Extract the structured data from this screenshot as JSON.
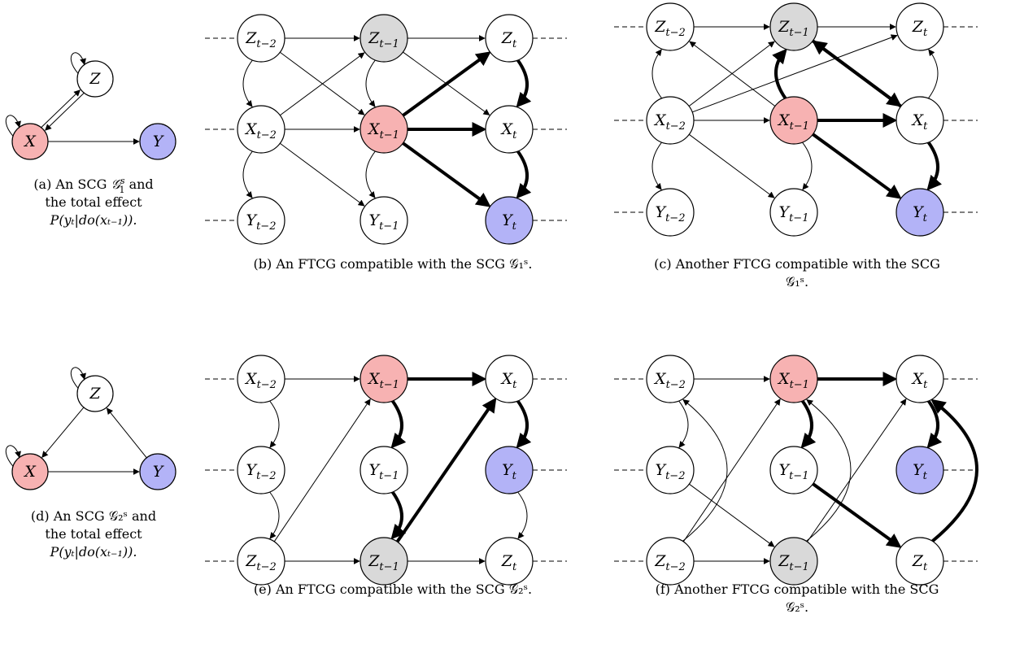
{
  "colors": {
    "red": "#f7b2b2",
    "blue": "#b3b3f7",
    "gray": "#d9d9d9",
    "white": "#ffffff"
  },
  "captions": {
    "a": {
      "l1": "(a) An SCG ",
      "g": "𝒢",
      "sup": "s",
      "sub": "1",
      "l1b": " and",
      "l2": "the total effect",
      "l3": "P(yₜ|do(xₜ₋₁))."
    },
    "b": "(b) An FTCG compatible with the SCG 𝒢₁ˢ.",
    "c": {
      "l1": "(c) Another FTCG compatible with the SCG",
      "l2": "𝒢₁ˢ."
    },
    "d": {
      "l1": "(d) An SCG 𝒢₂ˢ and",
      "l2": "the total effect",
      "l3": "P(yₜ|do(xₜ₋₁))."
    },
    "e": "(e) An FTCG compatible with the SCG 𝒢₂ˢ.",
    "f": {
      "l1": "(f) Another FTCG compatible with the SCG",
      "l2": "𝒢₂ˢ."
    }
  },
  "diagrams": {
    "a": {
      "nodes": [
        {
          "id": "Z",
          "var": "Z",
          "sub": "",
          "fill": "white"
        },
        {
          "id": "X",
          "var": "X",
          "sub": "",
          "fill": "red"
        },
        {
          "id": "Y",
          "var": "Y",
          "sub": "",
          "fill": "blue"
        }
      ]
    },
    "b": {
      "nodes": [
        {
          "id": "Z2",
          "var": "Z",
          "sub": "t−2",
          "fill": "white"
        },
        {
          "id": "Z1",
          "var": "Z",
          "sub": "t−1",
          "fill": "gray"
        },
        {
          "id": "Z0",
          "var": "Z",
          "sub": "t",
          "fill": "white"
        },
        {
          "id": "X2",
          "var": "X",
          "sub": "t−2",
          "fill": "white"
        },
        {
          "id": "X1",
          "var": "X",
          "sub": "t−1",
          "fill": "red"
        },
        {
          "id": "X0",
          "var": "X",
          "sub": "t",
          "fill": "white"
        },
        {
          "id": "Y2",
          "var": "Y",
          "sub": "t−2",
          "fill": "white"
        },
        {
          "id": "Y1",
          "var": "Y",
          "sub": "t−1",
          "fill": "white"
        },
        {
          "id": "Y0",
          "var": "Y",
          "sub": "t",
          "fill": "blue"
        }
      ]
    },
    "c": {
      "nodes": [
        {
          "id": "Z2",
          "var": "Z",
          "sub": "t−2",
          "fill": "white"
        },
        {
          "id": "Z1",
          "var": "Z",
          "sub": "t−1",
          "fill": "gray"
        },
        {
          "id": "Z0",
          "var": "Z",
          "sub": "t",
          "fill": "white"
        },
        {
          "id": "X2",
          "var": "X",
          "sub": "t−2",
          "fill": "white"
        },
        {
          "id": "X1",
          "var": "X",
          "sub": "t−1",
          "fill": "red"
        },
        {
          "id": "X0",
          "var": "X",
          "sub": "t",
          "fill": "white"
        },
        {
          "id": "Y2",
          "var": "Y",
          "sub": "t−2",
          "fill": "white"
        },
        {
          "id": "Y1",
          "var": "Y",
          "sub": "t−1",
          "fill": "white"
        },
        {
          "id": "Y0",
          "var": "Y",
          "sub": "t",
          "fill": "blue"
        }
      ]
    },
    "d": {
      "nodes": [
        {
          "id": "Z",
          "var": "Z",
          "sub": "",
          "fill": "white"
        },
        {
          "id": "X",
          "var": "X",
          "sub": "",
          "fill": "red"
        },
        {
          "id": "Y",
          "var": "Y",
          "sub": "",
          "fill": "blue"
        }
      ]
    },
    "e": {
      "nodes": [
        {
          "id": "X2",
          "var": "X",
          "sub": "t−2",
          "fill": "white"
        },
        {
          "id": "X1",
          "var": "X",
          "sub": "t−1",
          "fill": "red"
        },
        {
          "id": "X0",
          "var": "X",
          "sub": "t",
          "fill": "white"
        },
        {
          "id": "Y2",
          "var": "Y",
          "sub": "t−2",
          "fill": "white"
        },
        {
          "id": "Y1",
          "var": "Y",
          "sub": "t−1",
          "fill": "white"
        },
        {
          "id": "Y0",
          "var": "Y",
          "sub": "t",
          "fill": "blue"
        },
        {
          "id": "Z2",
          "var": "Z",
          "sub": "t−2",
          "fill": "white"
        },
        {
          "id": "Z1",
          "var": "Z",
          "sub": "t−1",
          "fill": "gray"
        },
        {
          "id": "Z0",
          "var": "Z",
          "sub": "t",
          "fill": "white"
        }
      ]
    },
    "f": {
      "nodes": [
        {
          "id": "X2",
          "var": "X",
          "sub": "t−2",
          "fill": "white"
        },
        {
          "id": "X1",
          "var": "X",
          "sub": "t−1",
          "fill": "red"
        },
        {
          "id": "X0",
          "var": "X",
          "sub": "t",
          "fill": "white"
        },
        {
          "id": "Y2",
          "var": "Y",
          "sub": "t−2",
          "fill": "white"
        },
        {
          "id": "Y1",
          "var": "Y",
          "sub": "t−1",
          "fill": "white"
        },
        {
          "id": "Y0",
          "var": "Y",
          "sub": "t",
          "fill": "blue"
        },
        {
          "id": "Z2",
          "var": "Z",
          "sub": "t−2",
          "fill": "white"
        },
        {
          "id": "Z1",
          "var": "Z",
          "sub": "t−1",
          "fill": "gray"
        },
        {
          "id": "Z0",
          "var": "Z",
          "sub": "t",
          "fill": "white"
        }
      ]
    }
  }
}
